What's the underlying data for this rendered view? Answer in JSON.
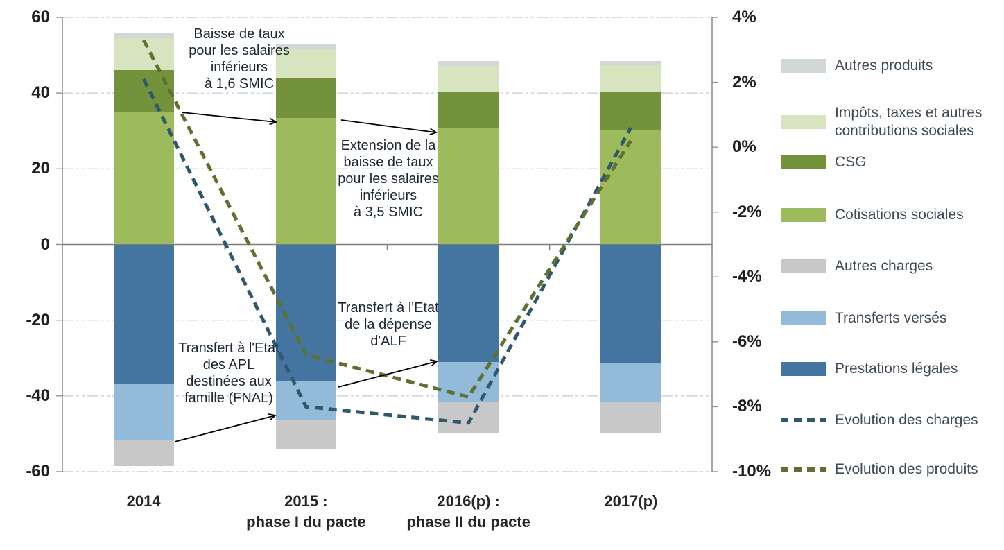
{
  "chart_data": {
    "type": "bar",
    "subtype": "stacked-bars-with-lines",
    "title": "",
    "categories": [
      "2014",
      "2015 :\nphase I du pacte",
      "2016(p) :\nphase II du pacte",
      "2017(p)"
    ],
    "bar_series": [
      {
        "name": "Cotisations sociales",
        "color": "#9dbb5c",
        "values": [
          35.0,
          33.5,
          30.7,
          30.4
        ]
      },
      {
        "name": "CSG",
        "color": "#74923c",
        "values": [
          11.0,
          10.5,
          9.7,
          10.0
        ]
      },
      {
        "name": "Impôts, taxes et autres contributions sociales",
        "color": "#d8e4bf",
        "values": [
          8.5,
          7.5,
          6.8,
          7.2
        ]
      },
      {
        "name": "Autres produits",
        "color": "#d2d8d7",
        "values": [
          1.5,
          1.3,
          1.3,
          0.9
        ]
      },
      {
        "name": "Prestations légales",
        "color": "#4474a0",
        "values": [
          -37.0,
          -36.0,
          -31.0,
          -31.5
        ]
      },
      {
        "name": "Transferts versés",
        "color": "#93bad8",
        "values": [
          -14.5,
          -10.5,
          -10.5,
          -10.0
        ]
      },
      {
        "name": "Autres charges",
        "color": "#c8c8c8",
        "values": [
          -7.0,
          -7.5,
          -8.5,
          -8.5
        ]
      }
    ],
    "line_series": [
      {
        "name": "Evolution des charges",
        "color": "#30586d",
        "axis": "right",
        "values_pct": [
          2.1,
          -8.0,
          -8.5,
          0.6
        ]
      },
      {
        "name": "Evolution des produits",
        "color": "#5e7130",
        "axis": "right",
        "values_pct": [
          3.3,
          -6.4,
          -7.7,
          0.2
        ]
      }
    ],
    "left_axis": {
      "min": -60,
      "max": 60,
      "ticks": [
        60,
        40,
        20,
        0,
        -20,
        -40,
        -60
      ]
    },
    "right_axis": {
      "min": -10,
      "max": 4,
      "tick_values": [
        4,
        2,
        0,
        -2,
        -4,
        -6,
        -8,
        -10
      ],
      "tick_labels": [
        "4%",
        "2%",
        "0%",
        "-2%",
        "-4%",
        "-6%",
        "-8%",
        "-10%"
      ]
    },
    "grid": true,
    "legend_position": "right",
    "legend": [
      {
        "label": "Autres produits",
        "kind": "box",
        "color": "#d2d8d7"
      },
      {
        "label": "Impôts, taxes et autres contributions sociales",
        "kind": "box",
        "color": "#d8e4bf"
      },
      {
        "label": "CSG",
        "kind": "box",
        "color": "#74923c"
      },
      {
        "label": "Cotisations sociales",
        "kind": "box",
        "color": "#9dbb5c"
      },
      {
        "label": "Autres charges",
        "kind": "box",
        "color": "#c8c8c8"
      },
      {
        "label": "Transferts versés",
        "kind": "box",
        "color": "#93bad8"
      },
      {
        "label": "Prestations légales",
        "kind": "box",
        "color": "#4474a0"
      },
      {
        "label": "Evolution des charges",
        "kind": "dash",
        "color": "#30586d"
      },
      {
        "label": "Evolution des produits",
        "kind": "dash",
        "color": "#5e7130"
      }
    ],
    "annotations": [
      {
        "text": "Baisse de taux\npour les salaires\ninférieurs\nà 1,6 SMIC"
      },
      {
        "text": "Extension de la\nbaisse de taux\npour les salaires\ninférieurs\nà 3,5 SMIC"
      },
      {
        "text": "Transfert à l'Etat\ndes APL\ndestinées aux\nfamille (FNAL)"
      },
      {
        "text": "Transfert à l'Etat\nde la dépense\nd'ALF"
      }
    ],
    "colors": {
      "zero_line": "#7f7f7f",
      "axis_line": "#8c9196",
      "gridline": "#c9d0d7",
      "arrow": "#000000"
    }
  }
}
